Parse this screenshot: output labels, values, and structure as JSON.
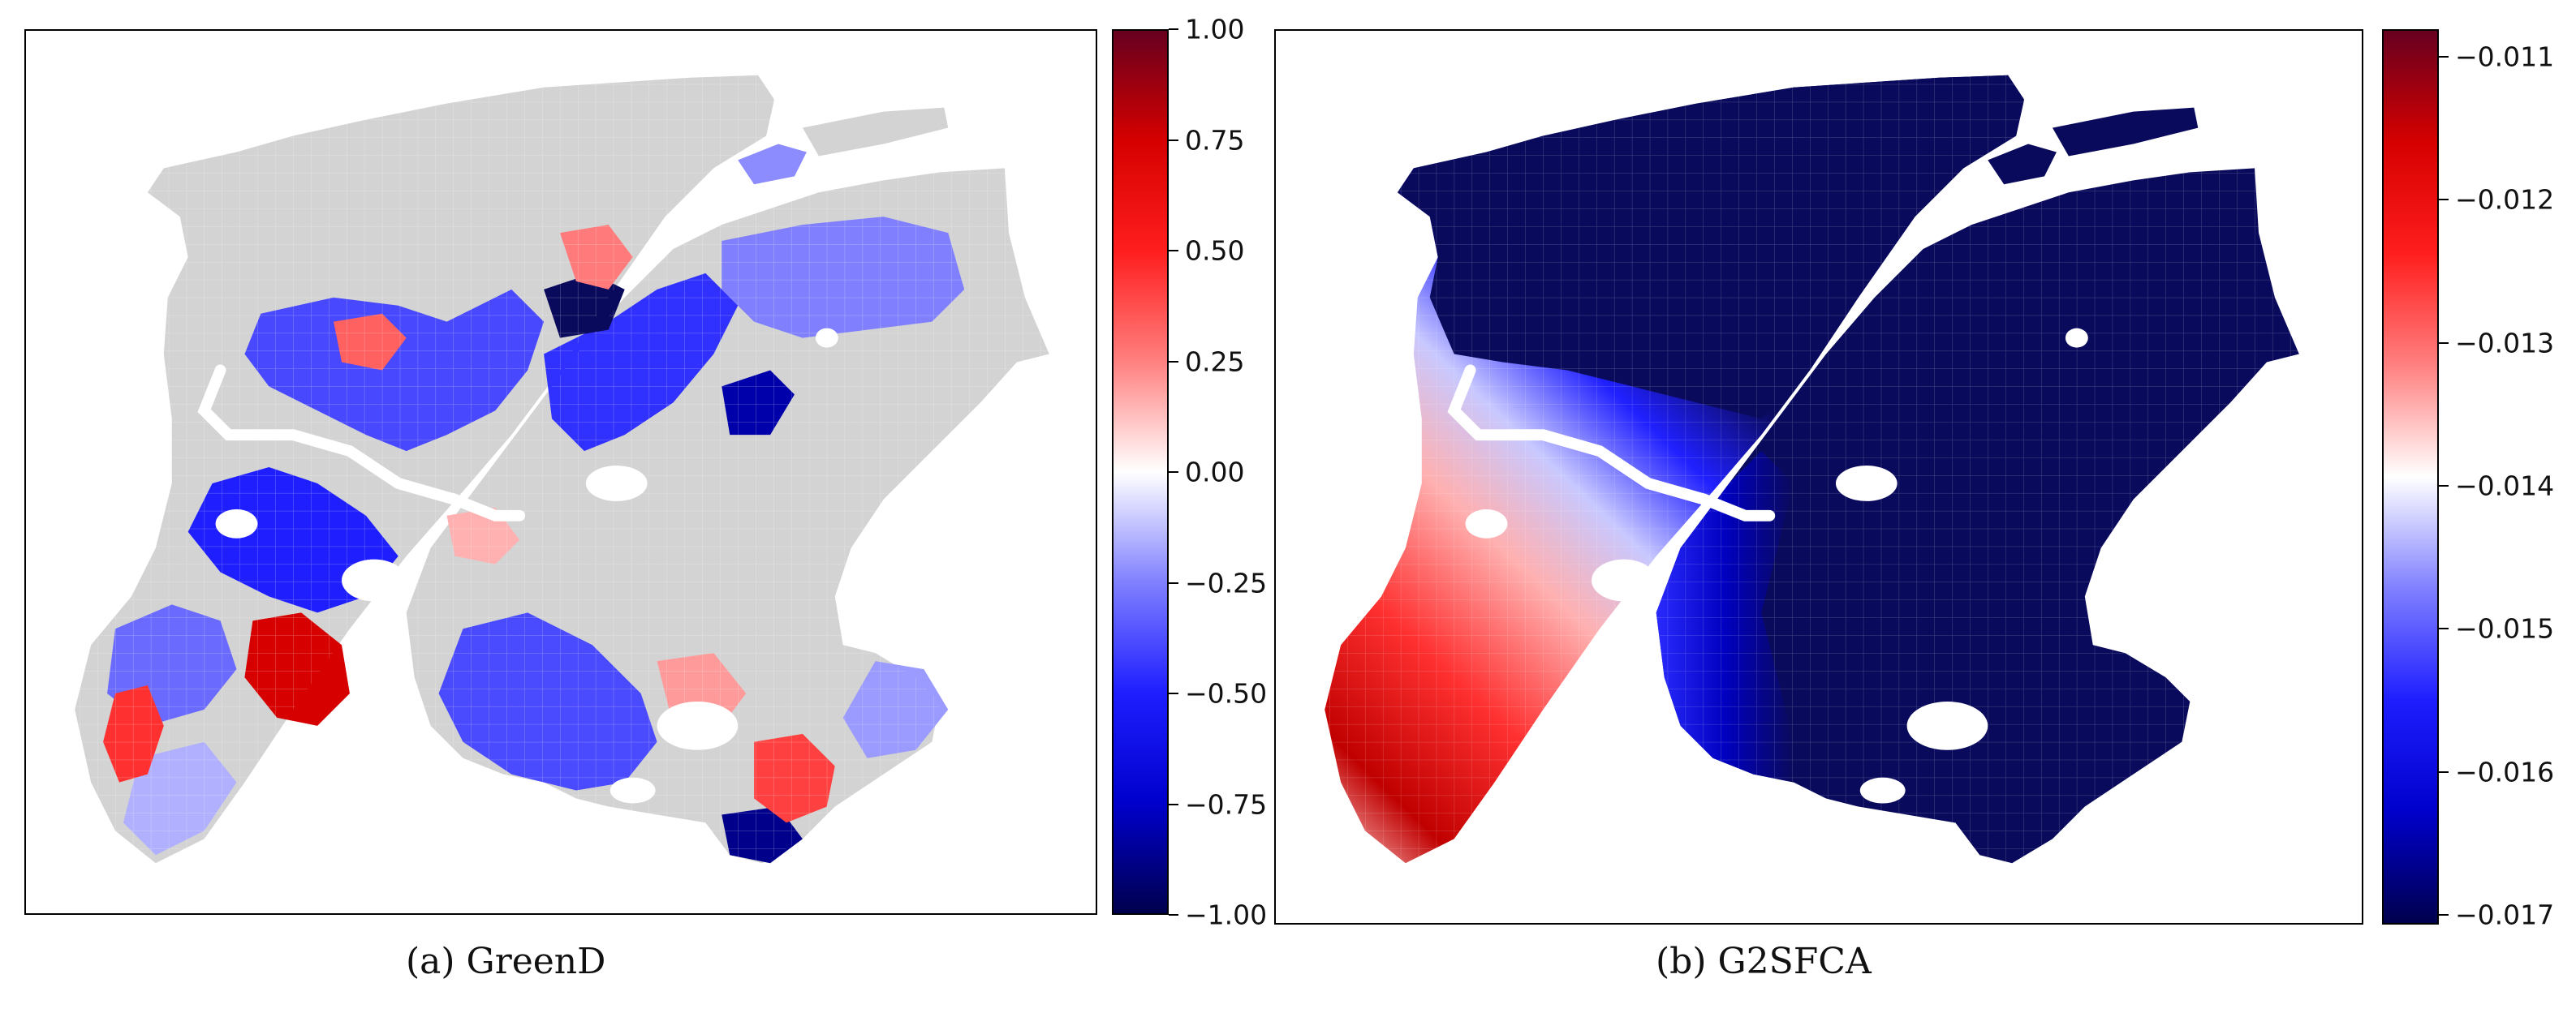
{
  "panels": [
    {
      "caption": "(a)  GreenD",
      "colorbar": {
        "colors": [
          "#67001f",
          "#d60000",
          "#ff1e1e",
          "#ff8080",
          "#ffffff",
          "#8080ff",
          "#1e1eff",
          "#0000cc",
          "#00004d"
        ],
        "ticks": [
          "1.00",
          "0.75",
          "0.50",
          "0.25",
          "0.00",
          "−0.25",
          "−0.50",
          "−0.75",
          "−1.00"
        ]
      }
    },
    {
      "caption": "(b)  G2SFCA",
      "colorbar": {
        "colors": [
          "#67001f",
          "#d60000",
          "#ff1e1e",
          "#ff8080",
          "#ffffff",
          "#8080ff",
          "#1e1eff",
          "#0000cc",
          "#00004d"
        ],
        "ticks": [
          "−0.011",
          "−0.012",
          "−0.013",
          "−0.014",
          "−0.015",
          "−0.016",
          "−0.017"
        ]
      }
    }
  ],
  "colors": {
    "no_data": "#d3d3d3",
    "deep_blue": "#0a0a5c",
    "river": "#ffffff"
  }
}
